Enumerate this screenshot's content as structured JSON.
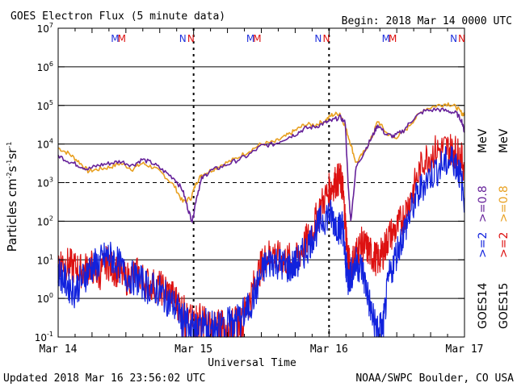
{
  "chart_data": {
    "type": "line",
    "title": "GOES Electron Flux (5 minute data)",
    "begin_label": "Begin: 2018 Mar 14 0000 UTC",
    "xlabel": "Universal Time",
    "ylabel": "Particles cm",
    "ylabel_sup1": "-2",
    "ylabel_mid1": "s",
    "ylabel_sup2": "-1",
    "ylabel_mid2": "sr",
    "ylabel_sup3": "-1",
    "x_unit": "days since 2018 Mar 14 0000 UTC",
    "xlim": [
      0,
      3
    ],
    "x_ticks": [
      {
        "v": 0,
        "label": "Mar 14"
      },
      {
        "v": 1,
        "label": "Mar 15"
      },
      {
        "v": 2,
        "label": "Mar 16"
      },
      {
        "v": 3,
        "label": "Mar 17"
      }
    ],
    "y_scale": "log",
    "ylim_exp": [
      -1,
      7
    ],
    "y_ticks": [
      {
        "exp": -1,
        "base": "10",
        "sup": "-1"
      },
      {
        "exp": 0,
        "base": "10",
        "sup": "0"
      },
      {
        "exp": 1,
        "base": "10",
        "sup": "1"
      },
      {
        "exp": 2,
        "base": "10",
        "sup": "2"
      },
      {
        "exp": 3,
        "base": "10",
        "sup": "3"
      },
      {
        "exp": 4,
        "base": "10",
        "sup": "4"
      },
      {
        "exp": 5,
        "base": "10",
        "sup": "5"
      },
      {
        "exp": 6,
        "base": "10",
        "sup": "6"
      },
      {
        "exp": 7,
        "base": "10",
        "sup": "7"
      }
    ],
    "threshold_exp": 3,
    "markers": [
      {
        "day": 0.42,
        "text": "M",
        "color": "#2233dd"
      },
      {
        "day": 0.47,
        "text": "M",
        "color": "#dd1111"
      },
      {
        "day": 0.92,
        "text": "N",
        "color": "#2233dd"
      },
      {
        "day": 0.98,
        "text": "N",
        "color": "#dd1111"
      },
      {
        "day": 1.42,
        "text": "M",
        "color": "#2233dd"
      },
      {
        "day": 1.47,
        "text": "M",
        "color": "#dd1111"
      },
      {
        "day": 1.92,
        "text": "N",
        "color": "#2233dd"
      },
      {
        "day": 1.98,
        "text": "N",
        "color": "#dd1111"
      },
      {
        "day": 2.42,
        "text": "M",
        "color": "#2233dd"
      },
      {
        "day": 2.47,
        "text": "M",
        "color": "#dd1111"
      },
      {
        "day": 2.92,
        "text": "N",
        "color": "#2233dd"
      },
      {
        "day": 2.98,
        "text": "N",
        "color": "#dd1111"
      }
    ],
    "right_labels": {
      "goes14": "GOES14",
      "goes15": "GOES15",
      "g14_ge2": ">=2",
      "g14_ge08": ">=0.8",
      "g15_ge2": ">=2",
      "g15_ge08": ">=0.8",
      "mev": "MeV"
    },
    "series": [
      {
        "name": "GOES15 >=0.8 MeV",
        "color": "#e8a020",
        "x": [
          0,
          0.08,
          0.15,
          0.22,
          0.3,
          0.38,
          0.46,
          0.55,
          0.62,
          0.7,
          0.78,
          0.86,
          0.92,
          0.98,
          1.02,
          1.06,
          1.12,
          1.2,
          1.3,
          1.4,
          1.5,
          1.6,
          1.68,
          1.75,
          1.82,
          1.9,
          1.97,
          2.02,
          2.08,
          2.12,
          2.16,
          2.2,
          2.26,
          2.32,
          2.36,
          2.42,
          2.48,
          2.55,
          2.62,
          2.7,
          2.8,
          2.88,
          2.94,
          2.98,
          3.0
        ],
        "y": [
          3.9,
          3.75,
          3.55,
          3.3,
          3.35,
          3.4,
          3.5,
          3.35,
          3.5,
          3.4,
          3.2,
          2.9,
          2.5,
          2.6,
          3.0,
          3.2,
          3.3,
          3.45,
          3.6,
          3.8,
          4.0,
          4.05,
          4.2,
          4.35,
          4.5,
          4.5,
          4.6,
          4.75,
          4.8,
          4.45,
          4.0,
          3.5,
          3.8,
          4.2,
          4.6,
          4.3,
          4.15,
          4.3,
          4.6,
          4.9,
          5.0,
          5.05,
          4.95,
          4.8,
          4.75
        ]
      },
      {
        "name": "GOES14 >=0.8 MeV",
        "color": "#66229a",
        "x": [
          0,
          0.08,
          0.15,
          0.22,
          0.3,
          0.38,
          0.46,
          0.55,
          0.62,
          0.7,
          0.78,
          0.86,
          0.92,
          0.96,
          0.99,
          1.02,
          1.06,
          1.12,
          1.2,
          1.3,
          1.4,
          1.5,
          1.6,
          1.68,
          1.75,
          1.82,
          1.9,
          1.97,
          2.02,
          2.08,
          2.12,
          2.14,
          2.16,
          2.2,
          2.26,
          2.32,
          2.36,
          2.42,
          2.48,
          2.55,
          2.62,
          2.7,
          2.8,
          2.88,
          2.94,
          2.98,
          3.0
        ],
        "y": [
          3.7,
          3.55,
          3.45,
          3.35,
          3.45,
          3.5,
          3.55,
          3.45,
          3.6,
          3.5,
          3.3,
          3.1,
          2.8,
          2.3,
          2.0,
          2.6,
          3.1,
          3.3,
          3.4,
          3.55,
          3.7,
          3.95,
          4.0,
          4.15,
          4.25,
          4.4,
          4.45,
          4.55,
          4.6,
          4.7,
          4.55,
          3.0,
          2.0,
          3.4,
          3.8,
          4.2,
          4.5,
          4.25,
          4.2,
          4.35,
          4.65,
          4.85,
          4.9,
          4.85,
          4.8,
          4.6,
          4.3
        ]
      },
      {
        "name": "GOES15 >=2 MeV",
        "color": "#dd1111",
        "x": [
          0,
          0.06,
          0.12,
          0.18,
          0.24,
          0.3,
          0.36,
          0.42,
          0.5,
          0.58,
          0.66,
          0.74,
          0.8,
          0.86,
          0.92,
          0.98,
          1.04,
          1.1,
          1.16,
          1.22,
          1.28,
          1.34,
          1.4,
          1.46,
          1.52,
          1.58,
          1.64,
          1.7,
          1.76,
          1.82,
          1.88,
          1.94,
          2.0,
          2.04,
          2.08,
          2.1,
          2.12,
          2.14,
          2.16,
          2.2,
          2.24,
          2.28,
          2.32,
          2.36,
          2.4,
          2.44,
          2.5,
          2.56,
          2.62,
          2.7,
          2.78,
          2.86,
          2.92,
          2.96,
          3.0
        ],
        "y": [
          1.0,
          0.9,
          0.8,
          0.7,
          0.85,
          0.6,
          0.95,
          0.75,
          0.5,
          0.65,
          0.4,
          0.3,
          0.2,
          0.0,
          -0.3,
          -0.6,
          -0.5,
          -0.7,
          -0.8,
          -0.6,
          -0.7,
          -0.6,
          -0.2,
          0.5,
          1.0,
          1.2,
          1.0,
          1.0,
          1.0,
          1.4,
          1.8,
          2.4,
          2.8,
          3.0,
          3.1,
          2.9,
          2.0,
          1.0,
          0.8,
          1.2,
          1.4,
          1.3,
          1.1,
          1.0,
          1.2,
          1.6,
          1.8,
          2.2,
          2.8,
          3.6,
          3.8,
          3.9,
          3.85,
          3.7,
          3.45
        ]
      },
      {
        "name": "GOES14 >=2 MeV",
        "color": "#1122dd",
        "x": [
          0,
          0.06,
          0.12,
          0.18,
          0.24,
          0.3,
          0.36,
          0.42,
          0.5,
          0.58,
          0.66,
          0.74,
          0.8,
          0.86,
          0.92,
          0.98,
          1.04,
          1.1,
          1.16,
          1.22,
          1.28,
          1.34,
          1.4,
          1.46,
          1.52,
          1.58,
          1.64,
          1.7,
          1.76,
          1.82,
          1.88,
          1.94,
          2.0,
          2.04,
          2.08,
          2.1,
          2.12,
          2.14,
          2.16,
          2.2,
          2.24,
          2.28,
          2.32,
          2.36,
          2.4,
          2.44,
          2.5,
          2.56,
          2.62,
          2.7,
          2.78,
          2.86,
          2.92,
          2.96,
          3.0
        ],
        "y": [
          0.7,
          0.4,
          0.2,
          0.5,
          0.8,
          0.9,
          1.1,
          1.0,
          0.6,
          0.5,
          0.3,
          0.2,
          0.0,
          -0.2,
          -0.5,
          -0.8,
          -0.6,
          -0.7,
          -0.8,
          -0.7,
          -0.6,
          -0.5,
          -0.3,
          0.2,
          0.8,
          1.0,
          0.9,
          0.8,
          0.9,
          1.2,
          1.6,
          2.0,
          2.2,
          2.0,
          1.8,
          1.9,
          1.0,
          0.5,
          0.6,
          0.9,
          0.8,
          0.2,
          -0.5,
          -0.8,
          -0.7,
          0.5,
          1.2,
          1.8,
          2.4,
          3.0,
          3.3,
          3.5,
          3.6,
          3.3,
          2.6
        ]
      }
    ]
  },
  "footer": {
    "updated": "Updated 2018 Mar 16 23:56:02 UTC",
    "credit": "NOAA/SWPC Boulder, CO USA"
  }
}
